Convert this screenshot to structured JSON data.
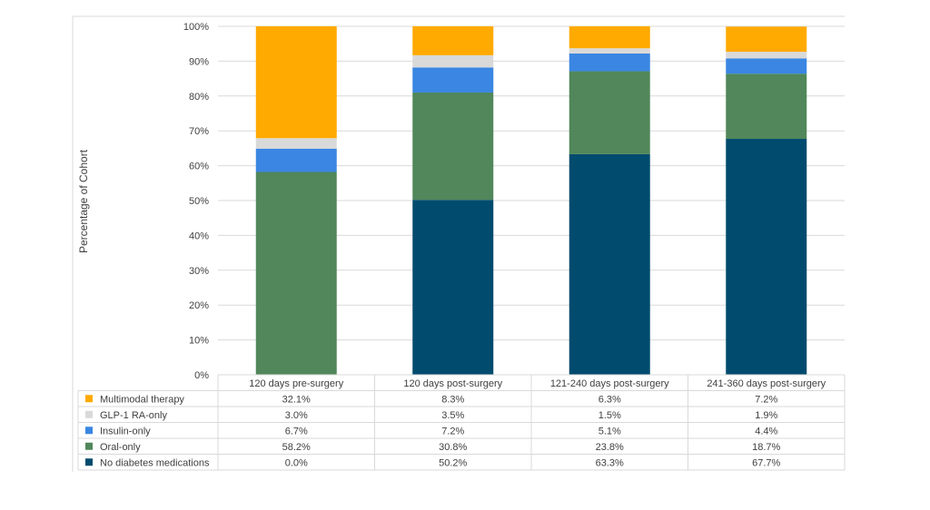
{
  "chart_data": {
    "type": "bar",
    "stacked": true,
    "title": "",
    "xlabel": "",
    "ylabel": "Percentage of Cohort",
    "ylim": [
      0,
      100
    ],
    "y_ticks": [
      "0%",
      "10%",
      "20%",
      "30%",
      "40%",
      "50%",
      "60%",
      "70%",
      "80%",
      "90%",
      "100%"
    ],
    "grid": true,
    "legend_placement": "bottom data table",
    "categories": [
      "120 days pre-surgery",
      "120 days post-surgery",
      "121-240 days post-surgery",
      "241-360 days post-surgery"
    ],
    "series": [
      {
        "name": "No diabetes medications",
        "color": "#004b6e",
        "values": [
          0.0,
          50.2,
          63.3,
          67.7
        ],
        "labels": [
          "0.0%",
          "50.2%",
          "63.3%",
          "67.7%"
        ]
      },
      {
        "name": "Oral-only",
        "color": "#51875a",
        "values": [
          58.2,
          30.8,
          23.8,
          18.7
        ],
        "labels": [
          "58.2%",
          "30.8%",
          "23.8%",
          "18.7%"
        ]
      },
      {
        "name": "Insulin-only",
        "color": "#3a86e2",
        "values": [
          6.7,
          7.2,
          5.1,
          4.4
        ],
        "labels": [
          "6.7%",
          "7.2%",
          "5.1%",
          "4.4%"
        ]
      },
      {
        "name": "GLP-1 RA-only",
        "color": "#d9d9d9",
        "values": [
          3.0,
          3.5,
          1.5,
          1.9
        ],
        "labels": [
          "3.0%",
          "3.5%",
          "1.5%",
          "1.9%"
        ]
      },
      {
        "name": "Multimodal therapy",
        "color": "#ffaa00",
        "values": [
          32.1,
          8.3,
          6.3,
          7.2
        ],
        "labels": [
          "32.1%",
          "8.3%",
          "6.3%",
          "7.2%"
        ]
      }
    ]
  }
}
